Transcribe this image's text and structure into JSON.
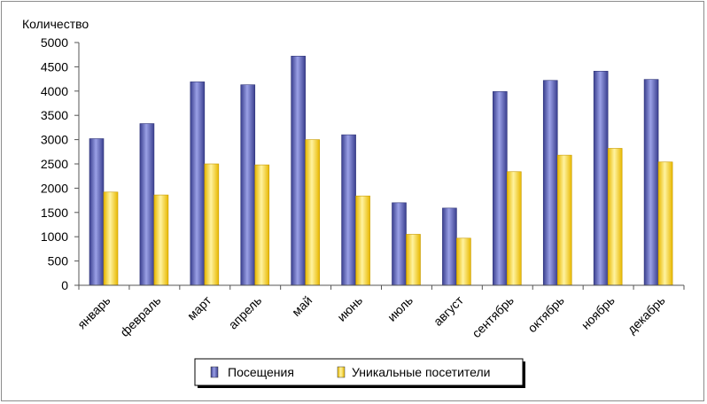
{
  "chart_data": {
    "type": "bar",
    "ylabel": "Количество",
    "ylim": [
      0,
      5000
    ],
    "ytick_step": 500,
    "categories": [
      "январь",
      "февраль",
      "март",
      "апрель",
      "май",
      "июнь",
      "июль",
      "август",
      "сентябрь",
      "октябрь",
      "ноябрь",
      "декабрь"
    ],
    "series": [
      {
        "name": "Посещения",
        "color": "#5a60b8",
        "values": [
          3020,
          3330,
          4190,
          4130,
          4720,
          3100,
          1700,
          1590,
          3990,
          4220,
          4410,
          4240
        ]
      },
      {
        "name": "Уникальные посетители",
        "color": "#f5d02a",
        "values": [
          1920,
          1860,
          2500,
          2480,
          3000,
          1840,
          1050,
          970,
          2340,
          2680,
          2820,
          2540
        ]
      }
    ],
    "legend": "bottom-center"
  }
}
